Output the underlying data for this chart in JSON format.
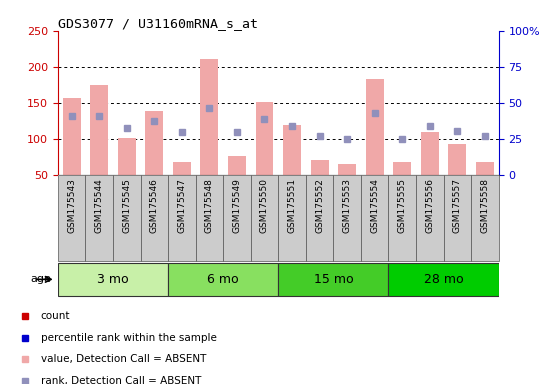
{
  "title": "GDS3077 / U31160mRNA_s_at",
  "samples": [
    "GSM175543",
    "GSM175544",
    "GSM175545",
    "GSM175546",
    "GSM175547",
    "GSM175548",
    "GSM175549",
    "GSM175550",
    "GSM175551",
    "GSM175552",
    "GSM175553",
    "GSM175554",
    "GSM175555",
    "GSM175556",
    "GSM175557",
    "GSM175558"
  ],
  "bar_values": [
    157,
    175,
    101,
    138,
    68,
    211,
    76,
    151,
    119,
    70,
    65,
    183,
    68,
    110,
    93,
    68
  ],
  "rank_values": [
    131,
    131,
    115,
    124,
    109,
    143,
    109,
    127,
    118,
    104,
    100,
    136,
    100,
    118,
    111,
    104
  ],
  "ylim_left": [
    50,
    250
  ],
  "ylim_right": [
    0,
    100
  ],
  "yticks_left": [
    50,
    100,
    150,
    200,
    250
  ],
  "yticks_right": [
    0,
    25,
    50,
    75,
    100
  ],
  "age_groups": [
    {
      "label": "3 mo",
      "start": 0,
      "end": 4,
      "color": "#c8f0a8"
    },
    {
      "label": "6 mo",
      "start": 4,
      "end": 8,
      "color": "#88e060"
    },
    {
      "label": "15 mo",
      "start": 8,
      "end": 12,
      "color": "#44cc28"
    },
    {
      "label": "28 mo",
      "start": 12,
      "end": 16,
      "color": "#00cc00"
    }
  ],
  "bar_color": "#f0a8a8",
  "rank_color": "#9090bb",
  "left_axis_color": "#cc0000",
  "right_axis_color": "#0000cc",
  "bg_color": "#ffffff",
  "cell_bg": "#cccccc",
  "cell_border": "#555555",
  "dotted_lines": [
    100,
    150,
    200
  ],
  "legend_items": [
    {
      "label": "count",
      "color": "#cc0000",
      "filled": true
    },
    {
      "label": "percentile rank within the sample",
      "color": "#0000cc",
      "filled": true
    },
    {
      "label": "value, Detection Call = ABSENT",
      "color": "#f0a8a8",
      "filled": true
    },
    {
      "label": "rank, Detection Call = ABSENT",
      "color": "#9090bb",
      "filled": true
    }
  ]
}
